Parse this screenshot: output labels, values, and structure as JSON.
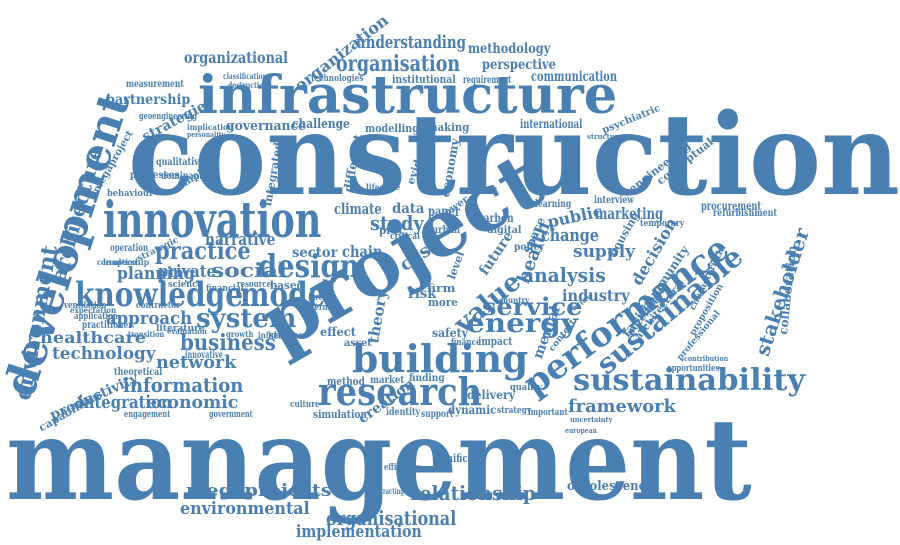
{
  "color": "#4a7fb1",
  "words": [
    "construction",
    "management",
    "infrastructure",
    "project",
    "development",
    "innovation",
    "building",
    "research",
    "performance",
    "sustainability",
    "knowledge",
    "model",
    "design",
    "sustainable",
    "environment",
    "architecture",
    "energy",
    "system",
    "practice",
    "service",
    "value",
    "analysis",
    "stakeholder",
    "information",
    "business",
    "organisation",
    "organisational",
    "relationship",
    "understanding",
    "organizational",
    "organization",
    "megaprojects",
    "environmental",
    "implementation",
    "framework",
    "economic",
    "integration",
    "healthcare",
    "technology",
    "network",
    "approach",
    "social",
    "marketing",
    "change",
    "supply",
    "collaboration",
    "productivity",
    "obsolescence",
    "communication",
    "perspective",
    "methodology",
    "partnership",
    "governance",
    "challenge",
    "strategies",
    "measurement",
    "international",
    "study",
    "planning",
    "private",
    "health",
    "industry",
    "procurement",
    "refurbishment",
    "narrative",
    "sector",
    "chain",
    "climate",
    "data",
    "paper",
    "public",
    "decision",
    "capabilities",
    "delivery",
    "dynamic",
    "simulation",
    "identity",
    "support",
    "significant",
    "efficiency",
    "contracting",
    "creation",
    "method",
    "market",
    "finding",
    "safety",
    "impact",
    "finance",
    "psychiatric",
    "facilities",
    "community",
    "potential",
    "engineering",
    "conceptual",
    "institutional",
    "requirement",
    "technologies",
    "modelling",
    "making",
    "qualitative",
    "dominant",
    "processes",
    "complex",
    "behaviour",
    "megaproject",
    "geoengineering",
    "operation",
    "leadership",
    "strategic",
    "culture",
    "effect",
    "studies",
    "asset",
    "innovative",
    "theoretical",
    "engagement",
    "government",
    "opportunities",
    "quality",
    "strategy",
    "important",
    "literature",
    "contractor",
    "evaluation",
    "interview",
    "learning",
    "digital",
    "carbon",
    "urban",
    "based",
    "resource",
    "financial",
    "science",
    "practitioner",
    "application",
    "ventilation",
    "expectation",
    "corruption",
    "implication",
    "personality",
    "classification",
    "destruction",
    "different",
    "evidence",
    "economy",
    "integrated",
    "green",
    "external",
    "risk",
    "case",
    "policy",
    "future",
    "mental",
    "space",
    "more",
    "firm",
    "level",
    "theory",
    "proc",
    "critical",
    "power",
    "temporary",
    "housing",
    "professional",
    "characteristic",
    "architectural",
    "proposition",
    "contribution",
    "european",
    "uncertainty",
    "structure",
    "lifecycle",
    "context",
    "country",
    "review",
    "transition",
    "growth",
    "influence"
  ]
}
